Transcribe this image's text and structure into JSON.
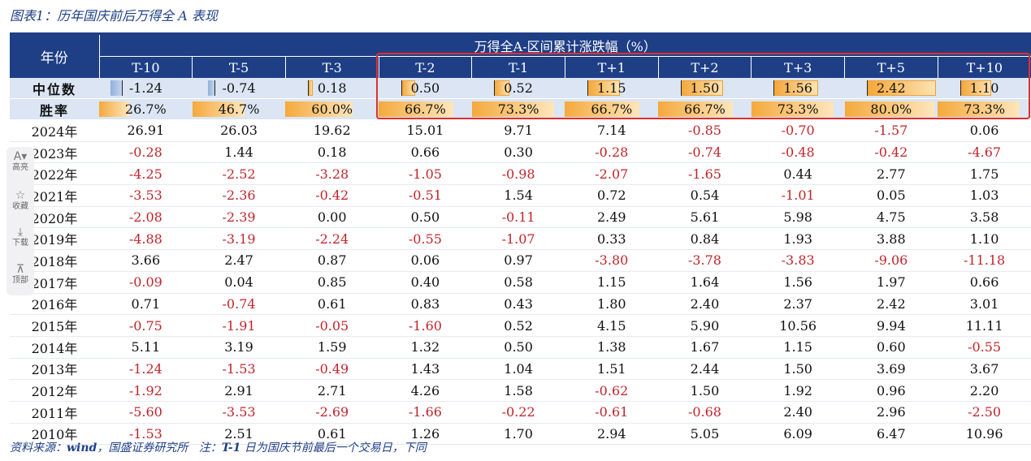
{
  "caption": "图表1：历年国庆前后万得全 A 表现",
  "header": {
    "year_label": "年份",
    "span_label": "万得全A-区间累计涨跌幅（%）",
    "columns": [
      "T-10",
      "T-5",
      "T-3",
      "T-2",
      "T-1",
      "T+1",
      "T+2",
      "T+3",
      "T+5",
      "T+10"
    ]
  },
  "median_row": {
    "label": "中位数",
    "display": [
      "-1.24",
      "-0.74",
      "0.18",
      "0.50",
      "0.52",
      "1.15",
      "1.50",
      "1.56",
      "2.42",
      "1.10"
    ],
    "values": [
      -1.24,
      -0.74,
      0.18,
      0.5,
      0.52,
      1.15,
      1.5,
      1.56,
      2.42,
      1.1
    ]
  },
  "winrate_row": {
    "label": "胜率",
    "display": [
      "26.7%",
      "46.7%",
      "60.0%",
      "66.7%",
      "73.3%",
      "66.7%",
      "66.7%",
      "73.3%",
      "80.0%",
      "73.3%"
    ],
    "values": [
      26.7,
      46.7,
      60.0,
      66.7,
      73.3,
      66.7,
      66.7,
      73.3,
      80.0,
      73.3
    ]
  },
  "rows": [
    {
      "year": "2024年",
      "values": [
        "26.91",
        "26.03",
        "19.62",
        "15.01",
        "9.71",
        "7.14",
        "-0.85",
        "-0.70",
        "-1.57",
        "0.06"
      ]
    },
    {
      "year": "2023年",
      "values": [
        "-0.28",
        "1.44",
        "0.18",
        "0.66",
        "0.30",
        "-0.28",
        "-0.74",
        "-0.48",
        "-0.42",
        "-4.67"
      ]
    },
    {
      "year": "2022年",
      "values": [
        "-4.25",
        "-2.52",
        "-3.28",
        "-1.05",
        "-0.98",
        "-2.07",
        "-1.65",
        "0.44",
        "2.77",
        "1.75"
      ]
    },
    {
      "year": "2021年",
      "values": [
        "-3.53",
        "-2.36",
        "-0.42",
        "-0.51",
        "1.54",
        "0.72",
        "0.54",
        "-1.01",
        "0.05",
        "1.03"
      ]
    },
    {
      "year": "2020年",
      "values": [
        "-2.08",
        "-2.39",
        "0.00",
        "0.50",
        "-0.11",
        "2.49",
        "5.61",
        "5.98",
        "4.75",
        "3.58"
      ]
    },
    {
      "year": "2019年",
      "values": [
        "-4.88",
        "-3.19",
        "-2.24",
        "-0.55",
        "-1.07",
        "0.33",
        "0.84",
        "1.93",
        "3.88",
        "1.10"
      ]
    },
    {
      "year": "2018年",
      "values": [
        "3.66",
        "2.47",
        "0.87",
        "0.06",
        "0.97",
        "-3.80",
        "-3.78",
        "-3.83",
        "-9.06",
        "-11.18"
      ]
    },
    {
      "year": "2017年",
      "values": [
        "-0.09",
        "0.04",
        "0.85",
        "0.40",
        "0.58",
        "1.15",
        "1.64",
        "1.56",
        "1.97",
        "0.66"
      ]
    },
    {
      "year": "2016年",
      "values": [
        "0.71",
        "-0.74",
        "0.61",
        "0.83",
        "0.43",
        "1.80",
        "2.40",
        "2.37",
        "2.42",
        "3.01"
      ]
    },
    {
      "year": "2015年",
      "values": [
        "-0.75",
        "-1.91",
        "-0.05",
        "-1.60",
        "0.52",
        "4.15",
        "5.90",
        "10.56",
        "9.94",
        "11.11"
      ]
    },
    {
      "year": "2014年",
      "values": [
        "5.11",
        "3.19",
        "1.59",
        "1.32",
        "0.50",
        "1.38",
        "1.67",
        "1.15",
        "0.60",
        "-0.55"
      ]
    },
    {
      "year": "2013年",
      "values": [
        "-1.24",
        "-1.53",
        "-0.49",
        "1.43",
        "1.04",
        "1.51",
        "2.44",
        "1.50",
        "3.69",
        "3.67"
      ]
    },
    {
      "year": "2012年",
      "values": [
        "-1.92",
        "2.91",
        "2.71",
        "4.26",
        "1.58",
        "-0.62",
        "1.50",
        "1.92",
        "0.96",
        "2.20"
      ]
    },
    {
      "year": "2011年",
      "values": [
        "-5.60",
        "-3.53",
        "-2.69",
        "-1.66",
        "-0.22",
        "-0.61",
        "-0.68",
        "2.40",
        "2.96",
        "-2.50"
      ]
    },
    {
      "year": "2010年",
      "values": [
        "-1.53",
        "2.51",
        "0.61",
        "1.26",
        "1.70",
        "2.94",
        "5.05",
        "6.09",
        "6.47",
        "10.96"
      ]
    }
  ],
  "colors": {
    "header_bg": "#1e3f86",
    "negative": "#c0242a",
    "highlight": "#e03030",
    "median_pos": "#f4a73a",
    "median_neg": "#8fb0dc"
  },
  "footer": {
    "source_prefix": "资料来源：",
    "source_brand": "wind",
    "source_suffix": "，国盛证券研究所",
    "note_prefix": "注：",
    "note_key": "T-1",
    "note_suffix": " 日为国庆节前最后一个交易日，下同"
  },
  "side_tools": [
    {
      "icon": "A▾",
      "label": "高亮",
      "icon_name": "highlight-icon"
    },
    {
      "icon": "☆",
      "label": "收藏",
      "icon_name": "star-icon"
    },
    {
      "icon": "⤓",
      "label": "下载",
      "icon_name": "download-icon"
    },
    {
      "icon": "⊼",
      "label": "顶部",
      "icon_name": "back-to-top-icon"
    }
  ]
}
